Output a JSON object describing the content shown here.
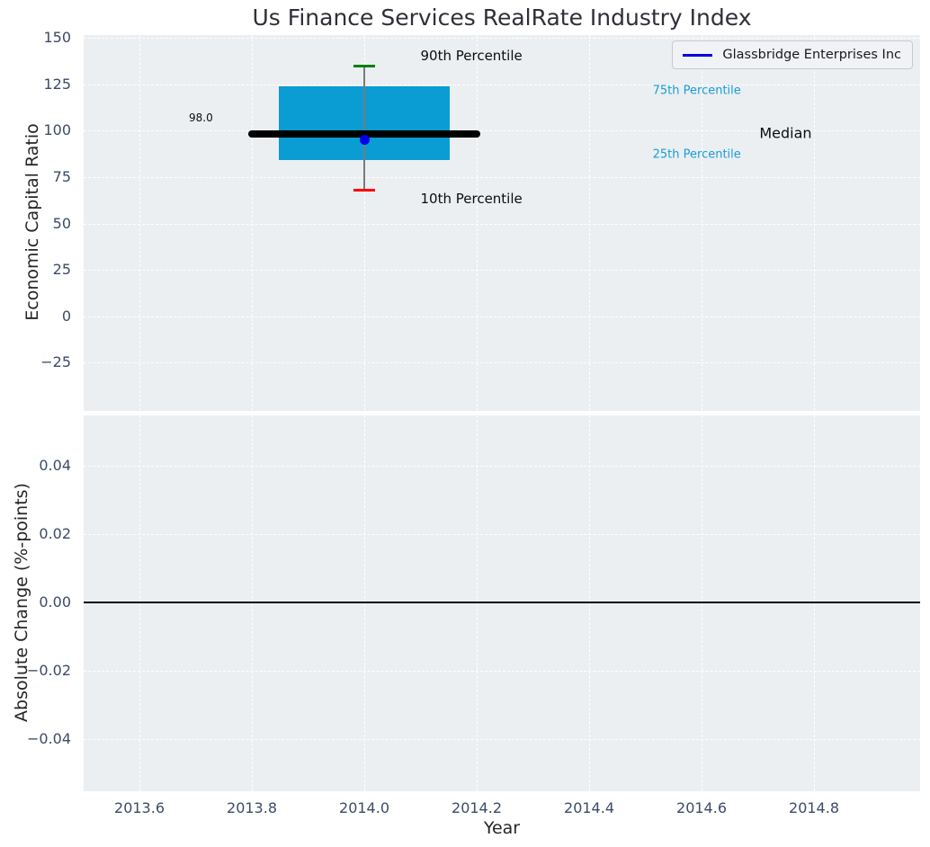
{
  "title": "Us Finance Services RealRate Industry Index",
  "legend": {
    "label": "Glassbridge Enterprises Inc",
    "line_color": "#0000dd"
  },
  "colors": {
    "plot_background": "#ebeff1",
    "grid": "#ffffff",
    "box_fill": "#099dd3",
    "median": "#000000",
    "whisker": "#7a7a7a",
    "cap_90th": "#008000",
    "cap_10th": "#fe0000",
    "company_marker": "#0000f0",
    "percentile_label": "#1a9cd8",
    "tick_text": "#3c4b66",
    "zero_line": "#000000"
  },
  "chart_data": [
    {
      "type": "boxplot",
      "title": "Us Finance Services RealRate Industry Index",
      "ylabel": "Economic Capital Ratio",
      "grid": true,
      "legend_position": "upper right",
      "xlim": [
        2013.5008,
        2014.9888
      ],
      "ylim": [
        -51,
        151.5
      ],
      "xticks": [
        {
          "v": 2013.6,
          "label": "2013.6"
        },
        {
          "v": 2013.8,
          "label": "2013.8"
        },
        {
          "v": 2014.0,
          "label": "2014.0"
        },
        {
          "v": 2014.2,
          "label": "2014.2"
        },
        {
          "v": 2014.4,
          "label": "2014.4"
        },
        {
          "v": 2014.6,
          "label": "2014.6"
        },
        {
          "v": 2014.8,
          "label": "2014.8"
        }
      ],
      "yticks": [
        {
          "v": 150,
          "label": "150"
        },
        {
          "v": 125,
          "label": "125"
        },
        {
          "v": 100,
          "label": "100"
        },
        {
          "v": 75,
          "label": "75"
        },
        {
          "v": 50,
          "label": "50"
        },
        {
          "v": 25,
          "label": "25"
        },
        {
          "v": 0,
          "label": "0"
        },
        {
          "v": -25,
          "label": "−25"
        }
      ],
      "box": {
        "x": 2014.0,
        "p10": 68,
        "p25": 84,
        "median": 98.0,
        "p75": 124,
        "p90": 135,
        "box_halfwidth": 0.152,
        "median_halfwidth": 0.206,
        "cap_halfwidth": 0.019,
        "box_color": "#099dd3",
        "median_color": "#000000",
        "whisker_color": "#7a7a7a",
        "p90_cap_color": "#008000",
        "p10_cap_color": "#fe0000"
      },
      "series": [
        {
          "name": "Glassbridge Enterprises Inc",
          "x": 2014.0,
          "value": 95,
          "color": "#0000f0"
        }
      ],
      "annotations": [
        {
          "text": "90th Percentile",
          "x": 2014.1,
          "y": 140.5,
          "color": "#0d0d0d",
          "size": 15
        },
        {
          "text": "10th Percentile",
          "x": 2014.1,
          "y": 63.5,
          "color": "#0d0d0d",
          "size": 15
        },
        {
          "text": "98.0",
          "x": 2013.688,
          "y": 107,
          "color": "#0d0d0d",
          "size": 12
        },
        {
          "text": "75th Percentile",
          "x": 2014.513,
          "y": 121.5,
          "color": "#1a9cd8",
          "size": 13
        },
        {
          "text": "Median",
          "x": 2014.703,
          "y": 98.5,
          "color": "#0d0d0d",
          "size": 16
        },
        {
          "text": "25th Percentile",
          "x": 2014.513,
          "y": 87,
          "color": "#1a9cd8",
          "size": 13
        }
      ]
    },
    {
      "type": "line",
      "ylabel": "Absolute Change (%-points)",
      "xlabel": "Year",
      "grid": true,
      "xlim": [
        2013.5008,
        2014.9888
      ],
      "ylim": [
        -0.0553,
        0.0547
      ],
      "xticks": [
        {
          "v": 2013.6,
          "label": "2013.6"
        },
        {
          "v": 2013.8,
          "label": "2013.8"
        },
        {
          "v": 2014.0,
          "label": "2014.0"
        },
        {
          "v": 2014.2,
          "label": "2014.2"
        },
        {
          "v": 2014.4,
          "label": "2014.4"
        },
        {
          "v": 2014.6,
          "label": "2014.6"
        },
        {
          "v": 2014.8,
          "label": "2014.8"
        }
      ],
      "yticks": [
        {
          "v": 0.04,
          "label": "0.04"
        },
        {
          "v": 0.02,
          "label": "0.02"
        },
        {
          "v": 0.0,
          "label": "0.00"
        },
        {
          "v": -0.02,
          "label": "−0.02"
        },
        {
          "v": -0.04,
          "label": "−0.04"
        }
      ],
      "zero_line": 0.0,
      "series": []
    }
  ]
}
